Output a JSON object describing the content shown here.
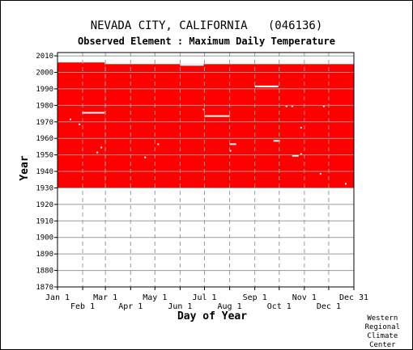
{
  "chart_data": {
    "type": "heatmap",
    "title": "NEVADA CITY, CALIFORNIA   (046136)",
    "subtitle": "Observed Element : Maximum Daily Temperature",
    "xlabel": "Day of Year",
    "ylabel": "Year",
    "x_ticks_upper": [
      "Jan 1",
      "Mar 1",
      "May 1",
      "Jul 1",
      "Sep 1",
      "Nov 1",
      "Dec 31"
    ],
    "x_ticks_lower": [
      "Feb 1",
      "Apr 1",
      "Jun 1",
      "Aug 1",
      "Oct 1",
      "Dec 1"
    ],
    "y_ticks": [
      1870,
      1880,
      1890,
      1900,
      1910,
      1920,
      1930,
      1940,
      1950,
      1960,
      1970,
      1980,
      1990,
      2000,
      2010
    ],
    "ylim": [
      1870,
      2012
    ],
    "xlim": [
      1,
      366
    ],
    "grid": true,
    "data_color": "#ff0000",
    "record_blocks": [
      {
        "start_day": 1,
        "end_day": 59,
        "start_year": 1930,
        "end_year": 2005
      },
      {
        "start_day": 59,
        "end_day": 366,
        "start_year": 1930,
        "end_year": 2004
      }
    ],
    "missing_segments": [
      {
        "start_day": 31,
        "end_day": 59,
        "year": 1975
      },
      {
        "start_day": 152,
        "end_day": 181,
        "year": 2004
      },
      {
        "start_day": 182,
        "end_day": 213,
        "year": 1973
      },
      {
        "start_day": 213,
        "end_day": 221,
        "year": 1956
      },
      {
        "start_day": 244,
        "end_day": 273,
        "year": 1991
      },
      {
        "start_day": 267,
        "end_day": 275,
        "year": 1958
      },
      {
        "start_day": 290,
        "end_day": 298,
        "year": 1949
      },
      {
        "start_day": 16,
        "end_day": 18,
        "year": 1971
      },
      {
        "start_day": 27,
        "end_day": 29,
        "year": 1968
      },
      {
        "start_day": 49,
        "end_day": 51,
        "year": 1951
      },
      {
        "start_day": 54,
        "end_day": 56,
        "year": 1954
      },
      {
        "start_day": 124,
        "end_day": 126,
        "year": 1956
      },
      {
        "start_day": 108,
        "end_day": 110,
        "year": 1948
      },
      {
        "start_day": 180,
        "end_day": 182,
        "year": 1977
      },
      {
        "start_day": 213,
        "end_day": 215,
        "year": 1952
      },
      {
        "start_day": 282,
        "end_day": 284,
        "year": 1979
      },
      {
        "start_day": 289,
        "end_day": 291,
        "year": 1979
      },
      {
        "start_day": 300,
        "end_day": 302,
        "year": 1966
      },
      {
        "start_day": 300,
        "end_day": 302,
        "year": 1950
      },
      {
        "start_day": 328,
        "end_day": 330,
        "year": 1979
      },
      {
        "start_day": 324,
        "end_day": 326,
        "year": 1938
      },
      {
        "start_day": 355,
        "end_day": 357,
        "year": 1932
      }
    ]
  },
  "credit": [
    "Western",
    "Regional",
    "Climate",
    "Center"
  ]
}
